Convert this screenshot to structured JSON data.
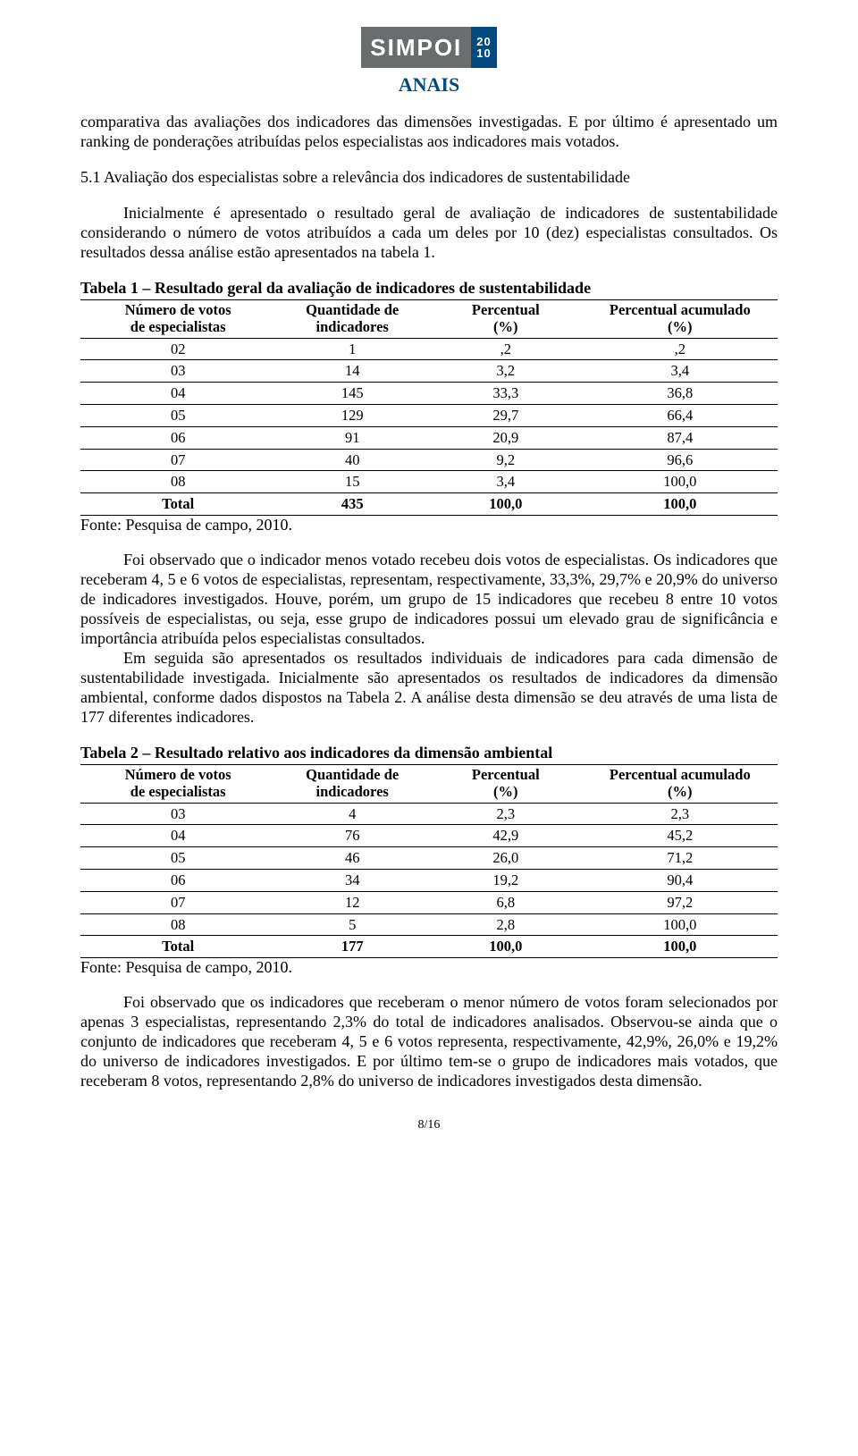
{
  "logo": {
    "brand": "SIMPOI",
    "year_top": "20",
    "year_bot": "10",
    "anais": "ANAIS"
  },
  "paragraphs": {
    "intro": "comparativa das avaliações dos indicadores das dimensões investigadas. E por último é apresentado um ranking de ponderações atribuídas pelos especialistas aos indicadores mais votados.",
    "section_head": "5.1 Avaliação dos especialistas sobre a relevância dos indicadores de sustentabilidade",
    "after_head": "Inicialmente é apresentado o resultado geral de avaliação de indicadores de sustentabilidade considerando o número de votos atribuídos a cada um deles por 10 (dez) especialistas consultados. Os resultados dessa análise estão apresentados na tabela 1.",
    "after_t1_a": "Foi observado que o indicador menos votado recebeu dois votos de especialistas. Os indicadores que receberam 4, 5 e 6 votos de especialistas, representam, respectivamente, 33,3%, 29,7% e 20,9% do universo de indicadores investigados. Houve, porém, um grupo de 15 indicadores que recebeu 8 entre 10 votos possíveis de especialistas, ou seja, esse grupo de indicadores possui um elevado grau de significância e importância atribuída pelos especialistas consultados.",
    "after_t1_b": "Em seguida são apresentados os resultados individuais de indicadores para cada dimensão de sustentabilidade investigada. Inicialmente são apresentados os resultados de indicadores da dimensão ambiental, conforme dados dispostos na Tabela 2. A análise desta dimensão se deu através de uma lista de 177 diferentes indicadores.",
    "after_t2": "Foi observado que os indicadores que receberam o menor número de votos foram selecionados por apenas 3 especialistas, representando 2,3% do total de indicadores analisados. Observou-se ainda que o conjunto de indicadores que receberam 4, 5 e 6 votos representa, respectivamente, 42,9%, 26,0% e 19,2% do universo de indicadores investigados. E por último tem-se o grupo de indicadores mais votados, que receberam 8 votos, representando 2,8% do universo de indicadores investigados desta dimensão."
  },
  "table1": {
    "title": "Tabela 1 – Resultado geral da avaliação de indicadores de sustentabilidade",
    "headers": [
      "Número de votos de especialistas",
      "Quantidade de indicadores",
      "Percentual (%)",
      "Percentual acumulado (%)"
    ],
    "rows": [
      [
        "02",
        "1",
        ",2",
        ",2"
      ],
      [
        "03",
        "14",
        "3,2",
        "3,4"
      ],
      [
        "04",
        "145",
        "33,3",
        "36,8"
      ],
      [
        "05",
        "129",
        "29,7",
        "66,4"
      ],
      [
        "06",
        "91",
        "20,9",
        "87,4"
      ],
      [
        "07",
        "40",
        "9,2",
        "96,6"
      ],
      [
        "08",
        "15",
        "3,4",
        "100,0"
      ]
    ],
    "total": [
      "Total",
      "435",
      "100,0",
      "100,0"
    ],
    "source": "Fonte: Pesquisa de campo, 2010."
  },
  "table2": {
    "title": "Tabela 2 – Resultado relativo aos indicadores da dimensão ambiental",
    "headers": [
      "Número de votos de especialistas",
      "Quantidade de indicadores",
      "Percentual (%)",
      "Percentual acumulado (%)"
    ],
    "rows": [
      [
        "03",
        "4",
        "2,3",
        "2,3"
      ],
      [
        "04",
        "76",
        "42,9",
        "45,2"
      ],
      [
        "05",
        "46",
        "26,0",
        "71,2"
      ],
      [
        "06",
        "34",
        "19,2",
        "90,4"
      ],
      [
        "07",
        "12",
        "6,8",
        "97,2"
      ],
      [
        "08",
        "5",
        "2,8",
        "100,0"
      ]
    ],
    "total": [
      "Total",
      "177",
      "100,0",
      "100,0"
    ],
    "source": "Fonte: Pesquisa de campo, 2010."
  },
  "page_number": "8/16",
  "col_widths": [
    "28%",
    "22%",
    "22%",
    "28%"
  ]
}
